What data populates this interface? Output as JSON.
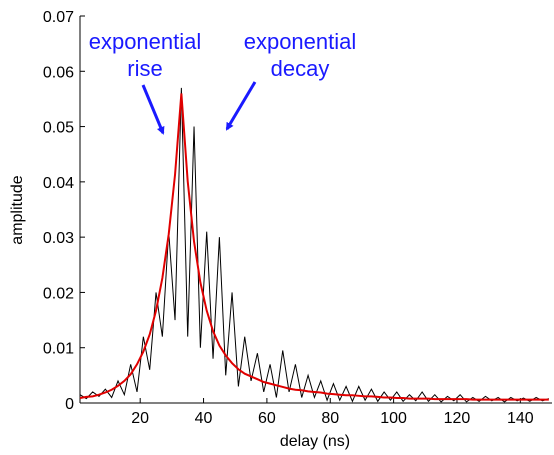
{
  "chart_data": {
    "type": "line",
    "x_label": "delay (ns)",
    "y_label": "amplitude",
    "x": [
      1,
      3,
      5,
      7,
      9,
      11,
      13,
      15,
      17,
      19,
      21,
      23,
      25,
      27,
      29,
      31,
      33,
      35,
      37,
      39,
      41,
      43,
      45,
      47,
      49,
      51,
      53,
      55,
      57,
      59,
      61,
      63,
      65,
      67,
      69,
      71,
      73,
      75,
      77,
      79,
      81,
      83,
      85,
      87,
      89,
      91,
      93,
      95,
      97,
      99,
      101,
      103,
      105,
      107,
      109,
      111,
      113,
      115,
      117,
      119,
      121,
      123,
      125,
      127,
      129,
      131,
      133,
      135,
      137,
      139,
      141,
      143,
      145,
      147,
      149
    ],
    "series": [
      {
        "color": "#000000",
        "values": [
          0.0015,
          0.0008,
          0.002,
          0.0012,
          0.0025,
          0.001,
          0.004,
          0.0015,
          0.007,
          0.002,
          0.012,
          0.006,
          0.02,
          0.012,
          0.031,
          0.015,
          0.057,
          0.012,
          0.05,
          0.01,
          0.031,
          0.008,
          0.03,
          0.005,
          0.02,
          0.003,
          0.012,
          0.004,
          0.009,
          0.002,
          0.007,
          0.001,
          0.0095,
          0.002,
          0.007,
          0.001,
          0.005,
          0.001,
          0.004,
          0.0005,
          0.0035,
          0.0005,
          0.003,
          0.0003,
          0.003,
          0.0005,
          0.0025,
          0.0003,
          0.002,
          0.0005,
          0.002,
          0.0003,
          0.0015,
          0.0004,
          0.002,
          0.0003,
          0.0015,
          0.0002,
          0.0012,
          0.0004,
          0.0015,
          0.0002,
          0.001,
          0.0003,
          0.0012,
          0.0004,
          0.001,
          0.0002,
          0.001,
          0.0004,
          0.0009,
          0.0003,
          0.001,
          0.0004,
          0.0008
        ]
      },
      {
        "color": "#e00000",
        "values": [
          0.0009,
          0.0011,
          0.0012,
          0.0015,
          0.0019,
          0.0024,
          0.0031,
          0.004,
          0.0052,
          0.007,
          0.0093,
          0.0124,
          0.0167,
          0.0226,
          0.0305,
          0.0413,
          0.056,
          0.0401,
          0.0292,
          0.0218,
          0.0167,
          0.013,
          0.0104,
          0.0086,
          0.0072,
          0.0061,
          0.0053,
          0.0048,
          0.0043,
          0.0038,
          0.0035,
          0.0032,
          0.0029,
          0.0026,
          0.0024,
          0.0023,
          0.0021,
          0.002,
          0.0019,
          0.0017,
          0.0016,
          0.0015,
          0.0014,
          0.0014,
          0.0013,
          0.0012,
          0.0012,
          0.0011,
          0.001,
          0.001,
          0.0009,
          0.0009,
          0.0008,
          0.0008,
          0.0008,
          0.0008,
          0.0007,
          0.0007,
          0.0007,
          0.0007,
          0.0007,
          0.0007,
          0.0006,
          0.0006,
          0.0006,
          0.0006,
          0.0006,
          0.0006,
          0.0006,
          0.0006,
          0.0006,
          0.0006,
          0.0006,
          0.0006,
          0.0006
        ]
      }
    ],
    "xlim": [
      1,
      150
    ],
    "ylim": [
      0,
      0.07
    ],
    "xticks": [
      20,
      40,
      60,
      80,
      100,
      120,
      140
    ],
    "yticks": [
      0,
      0.01,
      0.02,
      0.03,
      0.04,
      0.05,
      0.06,
      0.07
    ],
    "annotations": [
      {
        "lines": [
          "exponential",
          "rise"
        ],
        "color": "#1a1aff"
      },
      {
        "lines": [
          "exponential",
          "decay"
        ],
        "color": "#1a1aff"
      }
    ]
  }
}
